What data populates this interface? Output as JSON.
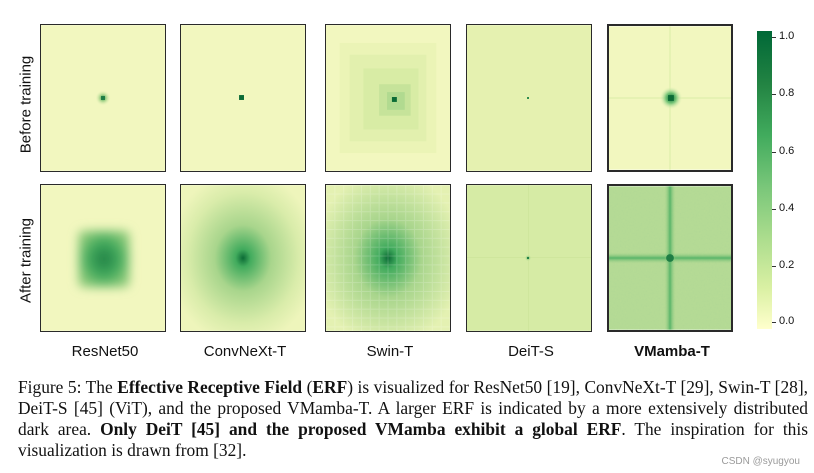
{
  "figure": {
    "row_labels": [
      "Before training",
      "After training"
    ],
    "column_labels": [
      "ResNet50",
      "ConvNeXt-T",
      "Swin-T",
      "DeiT-S",
      "VMamba-T"
    ],
    "colorbar": {
      "ticks": [
        "1.0",
        "0.8",
        "0.6",
        "0.4",
        "0.2",
        "0.0"
      ],
      "colors": [
        "#006837",
        "#238443",
        "#41ab5d",
        "#78c679",
        "#addd8e",
        "#d9f0a3",
        "#ffffcc"
      ]
    },
    "panel_colors": {
      "background": "#f2f7bf",
      "light": "#dbedaa",
      "mid": "#a8d58c",
      "dark": "#3f9d5a",
      "darkest": "#0b6b35"
    }
  },
  "caption": {
    "t1": "Figure 5: The ",
    "b1": "Effective Receptive Field",
    "t2": " (",
    "b2": "ERF",
    "t3": ") is visualized for ResNet50 [19], ConvNeXt-T [29], Swin-T [28], DeiT-S [45] (ViT), and the proposed VMamba-T. A larger ERF is indicated by a more extensively distributed dark area. ",
    "b3": "Only DeiT [45] and the proposed VMamba exhibit a global ERF",
    "t4": ". The inspiration for this visualization is drawn from [32]."
  },
  "watermark": "CSDN @syugyou"
}
